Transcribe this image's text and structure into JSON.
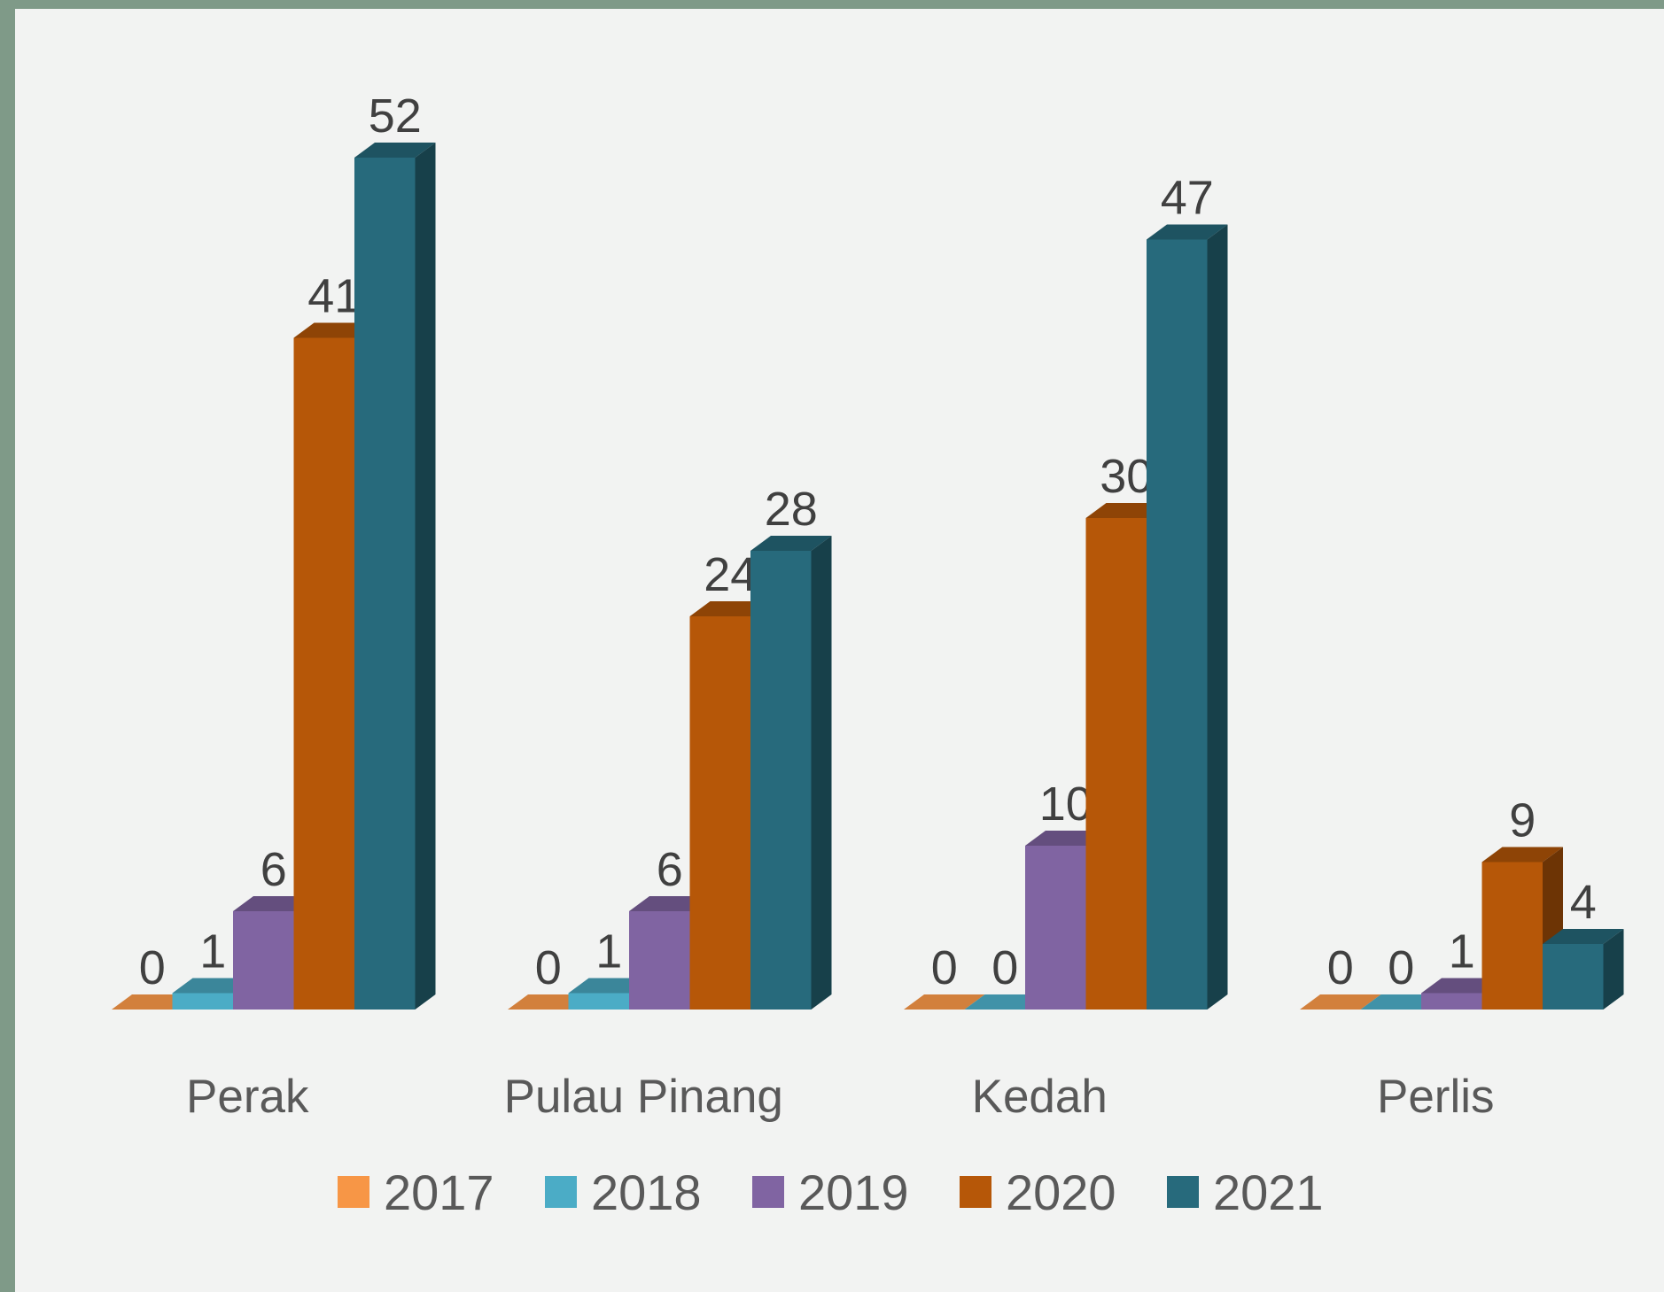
{
  "chart_data": {
    "type": "bar3d",
    "categories": [
      "Perak",
      "Pulau Pinang",
      "Kedah",
      "Perlis"
    ],
    "series": [
      {
        "name": "2017",
        "color": "#f79646",
        "values": [
          0,
          0,
          0,
          0
        ]
      },
      {
        "name": "2018",
        "color": "#4bacc6",
        "values": [
          1,
          1,
          0,
          0
        ]
      },
      {
        "name": "2019",
        "color": "#8064a2",
        "values": [
          6,
          6,
          10,
          1
        ]
      },
      {
        "name": "2020",
        "color": "#b65708",
        "values": [
          41,
          24,
          30,
          9
        ]
      },
      {
        "name": "2021",
        "color": "#276a7c",
        "values": [
          52,
          28,
          47,
          4
        ]
      }
    ],
    "legend": "bottom"
  }
}
